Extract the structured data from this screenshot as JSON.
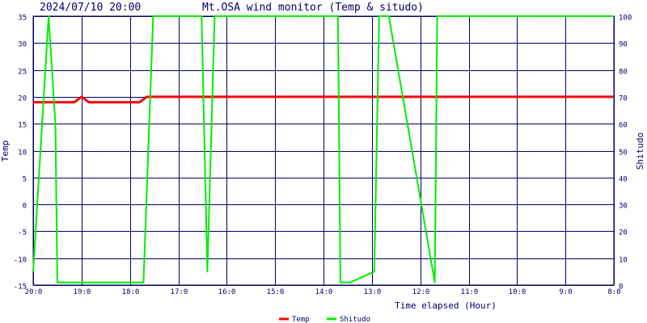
{
  "header": {
    "timestamp": "2024/07/10 20:00",
    "title": "Mt.OSA wind monitor (Temp & situdo)"
  },
  "chart_data": {
    "type": "line",
    "title": "Mt.OSA wind monitor (Temp & situdo)",
    "xlabel": "Time elapsed (Hour)",
    "ylabel_left": "Temp",
    "ylabel_right": "Shitudo",
    "ylim_left": [
      -15,
      35
    ],
    "ylim_right": [
      0,
      100
    ],
    "xlim_hours_elapsed": [
      0,
      12
    ],
    "left_ticks": [
      "35",
      "30",
      "25",
      "20",
      "15",
      "10",
      "5",
      "0",
      "-5",
      "-10",
      "-15"
    ],
    "right_ticks": [
      "100",
      "90",
      "80",
      "70",
      "60",
      "50",
      "40",
      "30",
      "20",
      "10",
      "0"
    ],
    "x_ticks": [
      "20:0",
      "19:0",
      "18:0",
      "17:0",
      "16:0",
      "15:0",
      "14:0",
      "13:0",
      "12:0",
      "11:0",
      "10:0",
      "9:0",
      "8:0"
    ],
    "grid": true,
    "legend_placement": "bottom-center",
    "series": [
      {
        "name": "Temp",
        "axis": "left",
        "color": "#ff0000",
        "x": [
          0,
          0.85,
          1.0,
          1.15,
          2.2,
          2.35,
          12
        ],
        "y": [
          19,
          19,
          20,
          19,
          19,
          20,
          20
        ]
      },
      {
        "name": "Shitudo",
        "axis": "right",
        "color": "#00ee00",
        "x": [
          0,
          0.32,
          0.46,
          0.5,
          2.28,
          2.48,
          3.48,
          3.6,
          3.75,
          6.3,
          6.35,
          6.55,
          7.05,
          7.15,
          7.35,
          8.3,
          8.35,
          12
        ],
        "y": [
          5,
          100,
          60,
          1,
          1,
          100,
          100,
          5,
          100,
          100,
          1,
          1,
          5,
          100,
          100,
          1,
          100,
          100
        ]
      }
    ]
  },
  "legend": {
    "temp_label": "Temp",
    "humidity_label": "Shitudo"
  }
}
